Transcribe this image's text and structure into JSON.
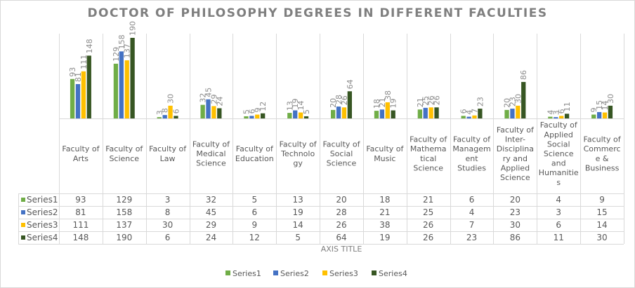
{
  "chart_data": {
    "type": "bar",
    "title": "DOCTOR OF PHILOSOPHY DEGREES IN DIFFERENT FACULTIES",
    "xlabel": "AXIS TITLE",
    "ylabel": "",
    "ylim": [
      0,
      190
    ],
    "grid": false,
    "legend_position": "bottom",
    "categories": [
      [
        "Faculty of",
        "Arts"
      ],
      [
        "Faculty of",
        "Science"
      ],
      [
        "Faculty of",
        "Law"
      ],
      [
        "Faculty of",
        "Medical",
        "Science"
      ],
      [
        "Faculty of",
        "Education"
      ],
      [
        "Faculty of",
        "Technolo",
        "gy"
      ],
      [
        "Faculty of",
        "Social",
        "Science"
      ],
      [
        "Faculty of",
        "Music"
      ],
      [
        "Faculty of",
        "Mathema",
        "tical",
        "Science"
      ],
      [
        "Faculty of",
        "Managem",
        "ent",
        "Studies"
      ],
      [
        "Faculty of",
        "Inter-",
        "Disciplina",
        "ry and",
        "Applied",
        "Science"
      ],
      [
        "Faculty of",
        "Applied",
        "Social",
        "Science",
        "and",
        "Humanitie",
        "s"
      ],
      [
        "Faculty of",
        "Commerc",
        "e &",
        "Business"
      ]
    ],
    "series": [
      {
        "name": "Series1",
        "color": "#70ad47",
        "values": [
          93,
          129,
          3,
          32,
          5,
          13,
          20,
          18,
          21,
          6,
          20,
          4,
          9
        ]
      },
      {
        "name": "Series2",
        "color": "#4472c4",
        "values": [
          81,
          158,
          8,
          45,
          6,
          19,
          28,
          21,
          25,
          4,
          23,
          3,
          15
        ]
      },
      {
        "name": "Series3",
        "color": "#ffc000",
        "values": [
          111,
          137,
          30,
          29,
          9,
          14,
          26,
          38,
          26,
          7,
          30,
          6,
          14
        ]
      },
      {
        "name": "Series4",
        "color": "#375623",
        "values": [
          148,
          190,
          6,
          24,
          12,
          5,
          64,
          19,
          26,
          23,
          86,
          11,
          30
        ]
      }
    ]
  }
}
